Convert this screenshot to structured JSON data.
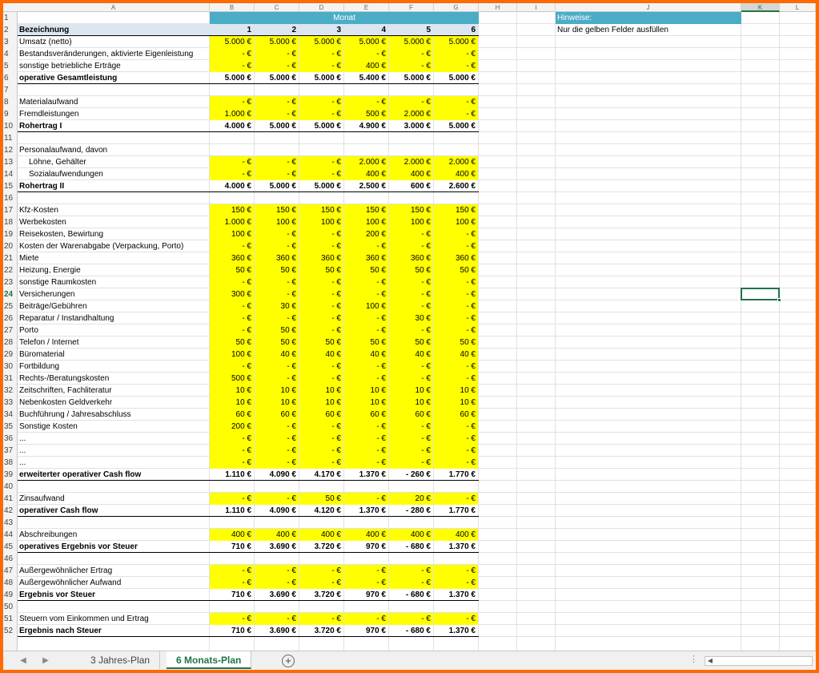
{
  "columns": [
    "A",
    "B",
    "C",
    "D",
    "E",
    "F",
    "G",
    "H",
    "I",
    "J",
    "K",
    "L"
  ],
  "header": {
    "monat": "Monat",
    "bezeichnung": "Bezeichnung",
    "months": [
      "1",
      "2",
      "3",
      "4",
      "5",
      "6"
    ],
    "hinweise_title": "Hinweise:",
    "hinweise_text": "Nur die gelben Felder ausfüllen"
  },
  "rows": [
    {
      "n": "1",
      "type": "header"
    },
    {
      "n": "2",
      "type": "subheader"
    },
    {
      "n": "3",
      "label": "Umsatz (netto)",
      "y": true,
      "v": [
        "5.000 €",
        "5.000 €",
        "5.000 €",
        "5.000 €",
        "5.000 €",
        "5.000 €"
      ]
    },
    {
      "n": "4",
      "label": "Bestandsveränderungen, aktivierte Eigenleistung",
      "y": true,
      "v": [
        "-   €",
        "-   €",
        "-   €",
        "-   €",
        "-   €",
        "-   €"
      ]
    },
    {
      "n": "5",
      "label": "sonstige betriebliche Erträge",
      "y": true,
      "v": [
        "-   €",
        "-   €",
        "-   €",
        "400 €",
        "-   €",
        "-   €"
      ]
    },
    {
      "n": "6",
      "label": "operative Gesamtleistung",
      "b": true,
      "v": [
        "5.000 €",
        "5.000 €",
        "5.000 €",
        "5.400 €",
        "5.000 €",
        "5.000 €"
      ]
    },
    {
      "n": "7",
      "label": "",
      "v": []
    },
    {
      "n": "8",
      "label": "Materialaufwand",
      "y": true,
      "v": [
        "-   €",
        "-   €",
        "-   €",
        "-   €",
        "-   €",
        "-   €"
      ]
    },
    {
      "n": "9",
      "label": "Fremdleistungen",
      "y": true,
      "v": [
        "1.000 €",
        "-   €",
        "-   €",
        "500 €",
        "2.000 €",
        "-   €"
      ]
    },
    {
      "n": "10",
      "label": "Rohertrag I",
      "b": true,
      "v": [
        "4.000 €",
        "5.000 €",
        "5.000 €",
        "4.900 €",
        "3.000 €",
        "5.000 €"
      ]
    },
    {
      "n": "11",
      "label": "",
      "v": []
    },
    {
      "n": "12",
      "label": "Personalaufwand, davon",
      "v": []
    },
    {
      "n": "13",
      "label": "Löhne, Gehälter",
      "ind": true,
      "y": true,
      "v": [
        "-   €",
        "-   €",
        "-   €",
        "2.000 €",
        "2.000 €",
        "2.000 €"
      ]
    },
    {
      "n": "14",
      "label": "Sozialaufwendungen",
      "ind": true,
      "y": true,
      "v": [
        "-   €",
        "-   €",
        "-   €",
        "400 €",
        "400 €",
        "400 €"
      ]
    },
    {
      "n": "15",
      "label": "Rohertrag II",
      "b": true,
      "v": [
        "4.000 €",
        "5.000 €",
        "5.000 €",
        "2.500 €",
        "600 €",
        "2.600 €"
      ]
    },
    {
      "n": "16",
      "label": "",
      "v": []
    },
    {
      "n": "17",
      "label": "Kfz-Kosten",
      "y": true,
      "v": [
        "150 €",
        "150 €",
        "150 €",
        "150 €",
        "150 €",
        "150 €"
      ]
    },
    {
      "n": "18",
      "label": "Werbekosten",
      "y": true,
      "v": [
        "1.000 €",
        "100 €",
        "100 €",
        "100 €",
        "100 €",
        "100 €"
      ]
    },
    {
      "n": "19",
      "label": "Reisekosten, Bewirtung",
      "y": true,
      "v": [
        "100 €",
        "-   €",
        "-   €",
        "200 €",
        "-   €",
        "-   €"
      ]
    },
    {
      "n": "20",
      "label": "Kosten der Warenabgabe (Verpackung, Porto)",
      "y": true,
      "v": [
        "-   €",
        "-   €",
        "-   €",
        "-   €",
        "-   €",
        "-   €"
      ]
    },
    {
      "n": "21",
      "label": "Miete",
      "y": true,
      "v": [
        "360 €",
        "360 €",
        "360 €",
        "360 €",
        "360 €",
        "360 €"
      ]
    },
    {
      "n": "22",
      "label": "Heizung, Energie",
      "y": true,
      "v": [
        "50 €",
        "50 €",
        "50 €",
        "50 €",
        "50 €",
        "50 €"
      ]
    },
    {
      "n": "23",
      "label": "sonstige Raumkosten",
      "y": true,
      "v": [
        "-   €",
        "-   €",
        "-   €",
        "-   €",
        "-   €",
        "-   €"
      ]
    },
    {
      "n": "24",
      "label": "Versicherungen",
      "y": true,
      "v": [
        "300 €",
        "-   €",
        "-   €",
        "-   €",
        "-   €",
        "-   €"
      ]
    },
    {
      "n": "25",
      "label": "Beiträge/Gebühren",
      "y": true,
      "v": [
        "-   €",
        "30 €",
        "-   €",
        "100 €",
        "-   €",
        "-   €"
      ]
    },
    {
      "n": "26",
      "label": "Reparatur / Instandhaltung",
      "y": true,
      "v": [
        "-   €",
        "-   €",
        "-   €",
        "-   €",
        "30 €",
        "-   €"
      ]
    },
    {
      "n": "27",
      "label": "Porto",
      "y": true,
      "v": [
        "-   €",
        "50 €",
        "-   €",
        "-   €",
        "-   €",
        "-   €"
      ]
    },
    {
      "n": "28",
      "label": "Telefon / Internet",
      "y": true,
      "v": [
        "50 €",
        "50 €",
        "50 €",
        "50 €",
        "50 €",
        "50 €"
      ]
    },
    {
      "n": "29",
      "label": "Büromaterial",
      "y": true,
      "v": [
        "100 €",
        "40 €",
        "40 €",
        "40 €",
        "40 €",
        "40 €"
      ]
    },
    {
      "n": "30",
      "label": "Fortbildung",
      "y": true,
      "v": [
        "-   €",
        "-   €",
        "-   €",
        "-   €",
        "-   €",
        "-   €"
      ]
    },
    {
      "n": "31",
      "label": "Rechts-/Beratungskosten",
      "y": true,
      "v": [
        "500 €",
        "-   €",
        "-   €",
        "-   €",
        "-   €",
        "-   €"
      ]
    },
    {
      "n": "32",
      "label": "Zeitschriften, Fachliteratur",
      "y": true,
      "v": [
        "10 €",
        "10 €",
        "10 €",
        "10 €",
        "10 €",
        "10 €"
      ]
    },
    {
      "n": "33",
      "label": "Nebenkosten Geldverkehr",
      "y": true,
      "v": [
        "10 €",
        "10 €",
        "10 €",
        "10 €",
        "10 €",
        "10 €"
      ]
    },
    {
      "n": "34",
      "label": "Buchführung / Jahresabschluss",
      "y": true,
      "v": [
        "60 €",
        "60 €",
        "60 €",
        "60 €",
        "60 €",
        "60 €"
      ]
    },
    {
      "n": "35",
      "label": "Sonstige Kosten",
      "y": true,
      "v": [
        "200 €",
        "-   €",
        "-   €",
        "-   €",
        "-   €",
        "-   €"
      ]
    },
    {
      "n": "36",
      "label": "...",
      "y": true,
      "v": [
        "-   €",
        "-   €",
        "-   €",
        "-   €",
        "-   €",
        "-   €"
      ]
    },
    {
      "n": "37",
      "label": "...",
      "y": true,
      "v": [
        "-   €",
        "-   €",
        "-   €",
        "-   €",
        "-   €",
        "-   €"
      ]
    },
    {
      "n": "38",
      "label": "...",
      "y": true,
      "v": [
        "-   €",
        "-   €",
        "-   €",
        "-   €",
        "-   €",
        "-   €"
      ]
    },
    {
      "n": "39",
      "label": "erweiterter operativer Cash flow",
      "b": true,
      "v": [
        "1.110 €",
        "4.090 €",
        "4.170 €",
        "1.370 €",
        "-      260 €",
        "1.770 €"
      ]
    },
    {
      "n": "40",
      "label": "",
      "v": []
    },
    {
      "n": "41",
      "label": "Zinsaufwand",
      "y": true,
      "v": [
        "-   €",
        "-   €",
        "50 €",
        "-   €",
        "20 €",
        "-   €"
      ]
    },
    {
      "n": "42",
      "label": "operativer Cash flow",
      "b": true,
      "v": [
        "1.110 €",
        "4.090 €",
        "4.120 €",
        "1.370 €",
        "-      280 €",
        "1.770 €"
      ]
    },
    {
      "n": "43",
      "label": "",
      "v": []
    },
    {
      "n": "44",
      "label": "Abschreibungen",
      "y": true,
      "v": [
        "400 €",
        "400 €",
        "400 €",
        "400 €",
        "400 €",
        "400 €"
      ]
    },
    {
      "n": "45",
      "label": "operatives Ergebnis vor Steuer",
      "b": true,
      "v": [
        "710 €",
        "3.690 €",
        "3.720 €",
        "970 €",
        "-      680 €",
        "1.370 €"
      ]
    },
    {
      "n": "46",
      "label": "",
      "v": []
    },
    {
      "n": "47",
      "label": "Außergewöhnlicher Ertrag",
      "y": true,
      "v": [
        "-   €",
        "-   €",
        "-   €",
        "-   €",
        "-   €",
        "-   €"
      ]
    },
    {
      "n": "48",
      "label": "Außergewöhnlicher Aufwand",
      "y": true,
      "v": [
        "-   €",
        "-   €",
        "-   €",
        "-   €",
        "-   €",
        "-   €"
      ]
    },
    {
      "n": "49",
      "label": "Ergebnis vor Steuer",
      "b": true,
      "v": [
        "710 €",
        "3.690 €",
        "3.720 €",
        "970 €",
        "-      680 €",
        "1.370 €"
      ]
    },
    {
      "n": "50",
      "label": "",
      "v": []
    },
    {
      "n": "51",
      "label": "Steuern vom Einkommen und Ertrag",
      "y": true,
      "v": [
        "-   €",
        "-   €",
        "-   €",
        "-   €",
        "-   €",
        "-   €"
      ]
    },
    {
      "n": "52",
      "label": "Ergebnis nach Steuer",
      "b": true,
      "v": [
        "710 €",
        "3.690 €",
        "3.720 €",
        "970 €",
        "-      680 €",
        "1.370 €"
      ]
    }
  ],
  "active_row": "24",
  "active_column": "K",
  "tabs": {
    "prev": "◀",
    "next": "▶",
    "sheets": [
      "3 Jahres-Plan",
      "6 Monats-Plan"
    ],
    "active": "6 Monats-Plan",
    "add": "+",
    "scroll_left": "◀"
  },
  "colors": {
    "yellow": "#ffff00",
    "header_blue": "#4bacc6",
    "frame": "#ff6a00",
    "excel_green": "#217346"
  }
}
